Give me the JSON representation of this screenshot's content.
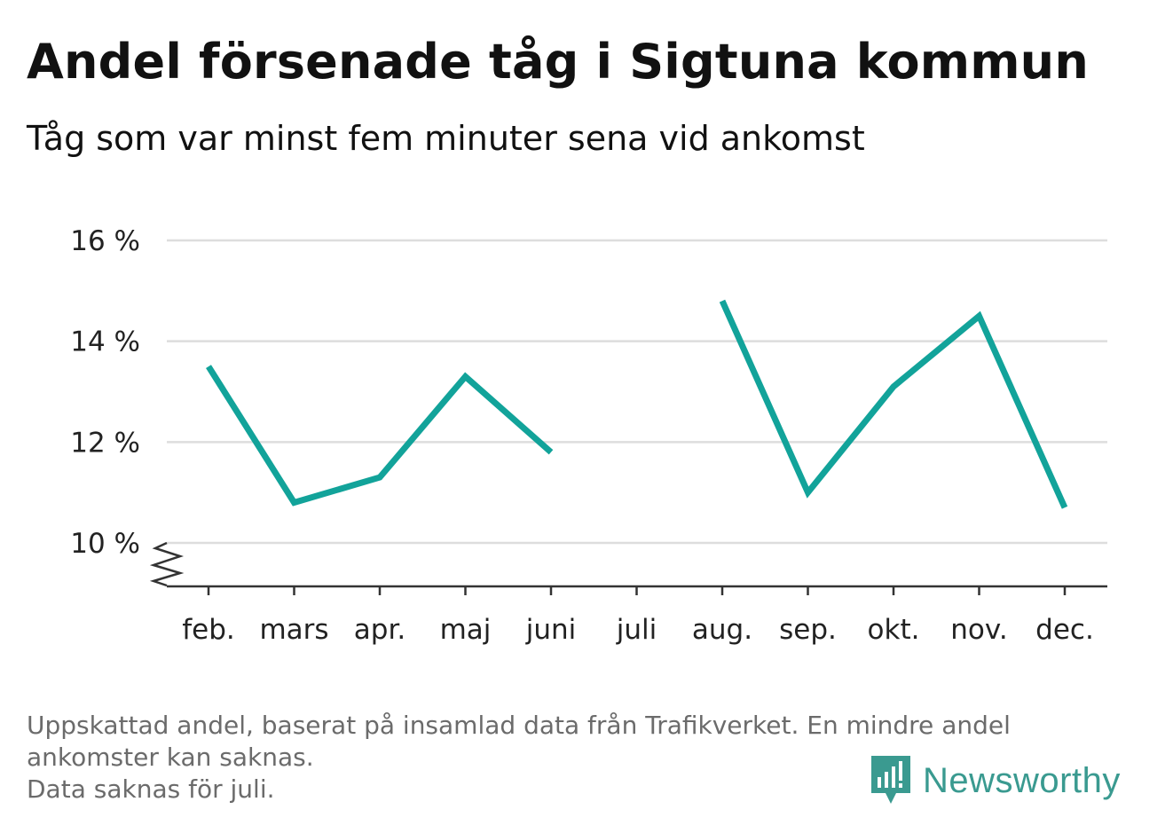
{
  "title": "Andel försenade tåg i Sigtuna kommun",
  "subtitle": "Tåg som var minst fem minuter sena vid ankomst",
  "footnote": [
    "Uppskattad andel, baserat på insamlad data från Trafikverket. En mindre andel",
    "ankomster kan saknas.",
    "Data saknas för juli."
  ],
  "brand": "Newsworthy",
  "colors": {
    "line": "#12a39a",
    "grid": "#dddddd",
    "axis": "#333333",
    "brand": "#3a9a90"
  },
  "chart_data": {
    "type": "line",
    "categories": [
      "feb.",
      "mars",
      "apr.",
      "maj",
      "juni",
      "juli",
      "aug.",
      "sep.",
      "okt.",
      "nov.",
      "dec."
    ],
    "series": [
      {
        "values": [
          13.5,
          10.8,
          11.3,
          13.3,
          11.8,
          null,
          14.8,
          11.0,
          13.1,
          14.5,
          10.7
        ]
      }
    ],
    "yticks": [
      10,
      12,
      14,
      16
    ],
    "ytick_labels": [
      "10 %",
      "12 %",
      "14 %",
      "16 %"
    ],
    "ylim": [
      10,
      16
    ],
    "axis_break": true,
    "grid": true
  }
}
